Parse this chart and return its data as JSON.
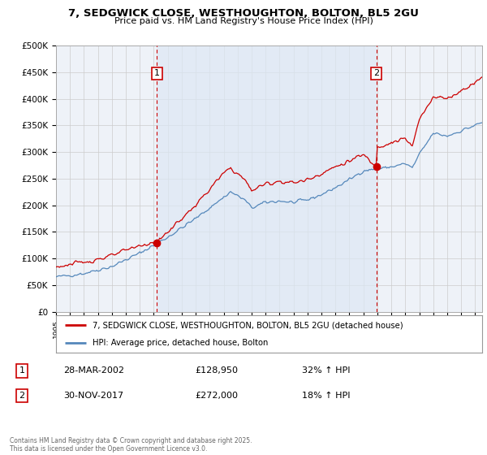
{
  "title_line1": "7, SEDGWICK CLOSE, WESTHOUGHTON, BOLTON, BL5 2GU",
  "title_line2": "Price paid vs. HM Land Registry's House Price Index (HPI)",
  "legend_label_red": "7, SEDGWICK CLOSE, WESTHOUGHTON, BOLTON, BL5 2GU (detached house)",
  "legend_label_blue": "HPI: Average price, detached house, Bolton",
  "annotation1_date": "28-MAR-2002",
  "annotation1_price": "£128,950",
  "annotation1_change": "32% ↑ HPI",
  "annotation2_date": "30-NOV-2017",
  "annotation2_price": "£272,000",
  "annotation2_change": "18% ↑ HPI",
  "footer": "Contains HM Land Registry data © Crown copyright and database right 2025.\nThis data is licensed under the Open Government Licence v3.0.",
  "red_color": "#cc0000",
  "blue_color": "#5588bb",
  "vline_color": "#cc0000",
  "highlight_color": "#dde8f4",
  "grid_color": "#cccccc",
  "bg_color": "#ffffff",
  "plot_bg_color": "#eef2f8",
  "ylim_min": 0,
  "ylim_max": 500000,
  "yticks": [
    0,
    50000,
    100000,
    150000,
    200000,
    250000,
    300000,
    350000,
    400000,
    450000,
    500000
  ],
  "ytick_labels": [
    "£0",
    "£50K",
    "£100K",
    "£150K",
    "£200K",
    "£250K",
    "£300K",
    "£350K",
    "£400K",
    "£450K",
    "£500K"
  ],
  "xmin": 1995,
  "xmax": 2025.5,
  "vline1_x": 2002.23,
  "vline2_x": 2017.92,
  "marker1_x": 2002.23,
  "marker1_y": 128950,
  "marker2_x": 2017.92,
  "marker2_y": 272000
}
